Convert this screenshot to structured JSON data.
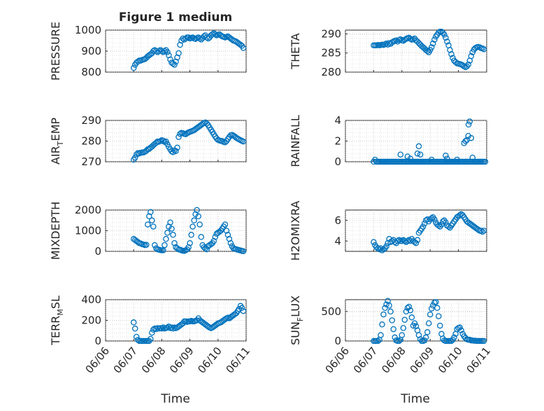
{
  "figure": {
    "title": "Figure 1 medium",
    "xlabel": "Time"
  },
  "theme": {
    "marker_color": "#0072bd"
  },
  "xaxis": {
    "ticks": [
      0,
      1,
      2,
      3,
      4,
      5
    ],
    "tick_labels": [
      "06/06",
      "06/07",
      "06/08",
      "06/09",
      "06/10",
      "06/11"
    ]
  },
  "chart_data": [
    {
      "type": "scatter",
      "ylabel": "PRESSURE",
      "ylim": [
        800,
        1000
      ],
      "yticks": [
        800,
        900,
        1000
      ],
      "grid": true,
      "x": [
        1.0,
        1.05,
        1.1,
        1.15,
        1.2,
        1.25,
        1.3,
        1.35,
        1.4,
        1.45,
        1.5,
        1.55,
        1.6,
        1.65,
        1.7,
        1.75,
        1.8,
        1.85,
        1.9,
        1.95,
        2.0,
        2.05,
        2.1,
        2.15,
        2.2,
        2.25,
        2.3,
        2.35,
        2.4,
        2.45,
        2.5,
        2.55,
        2.6,
        2.65,
        2.7,
        2.75,
        2.8,
        2.85,
        2.9,
        2.95,
        3.0,
        3.05,
        3.1,
        3.15,
        3.2,
        3.25,
        3.3,
        3.35,
        3.4,
        3.45,
        3.5,
        3.55,
        3.6,
        3.65,
        3.7,
        3.75,
        3.8,
        3.85,
        3.9,
        3.95,
        4.0,
        4.05,
        4.1,
        4.15,
        4.2,
        4.25,
        4.3,
        4.35,
        4.4,
        4.45,
        4.5,
        4.55,
        4.6,
        4.65,
        4.7,
        4.75,
        4.8,
        4.85,
        4.9
      ],
      "y": [
        820,
        835,
        845,
        850,
        855,
        855,
        858,
        860,
        862,
        868,
        875,
        880,
        885,
        890,
        900,
        905,
        900,
        895,
        900,
        905,
        900,
        895,
        900,
        905,
        895,
        880,
        860,
        845,
        840,
        835,
        850,
        870,
        890,
        930,
        950,
        960,
        955,
        960,
        965,
        965,
        960,
        962,
        965,
        960,
        958,
        962,
        965,
        960,
        955,
        962,
        970,
        975,
        965,
        960,
        965,
        975,
        980,
        985,
        980,
        975,
        978,
        980,
        975,
        970,
        968,
        965,
        968,
        970,
        965,
        960,
        955,
        950,
        948,
        945,
        940,
        935,
        930,
        925,
        915
      ]
    },
    {
      "type": "scatter",
      "ylabel": "THETA",
      "ylim": [
        280,
        291
      ],
      "yticks": [
        280,
        285,
        290
      ],
      "grid": true,
      "x": [
        1.0,
        1.05,
        1.1,
        1.15,
        1.2,
        1.25,
        1.3,
        1.35,
        1.4,
        1.45,
        1.5,
        1.55,
        1.6,
        1.65,
        1.7,
        1.75,
        1.8,
        1.85,
        1.9,
        1.95,
        2.0,
        2.05,
        2.1,
        2.15,
        2.2,
        2.25,
        2.3,
        2.35,
        2.4,
        2.45,
        2.5,
        2.55,
        2.6,
        2.65,
        2.7,
        2.75,
        2.8,
        2.85,
        2.9,
        2.95,
        3.0,
        3.05,
        3.1,
        3.15,
        3.2,
        3.25,
        3.3,
        3.35,
        3.4,
        3.45,
        3.5,
        3.55,
        3.6,
        3.65,
        3.7,
        3.75,
        3.8,
        3.85,
        3.9,
        3.95,
        4.0,
        4.05,
        4.1,
        4.15,
        4.2,
        4.25,
        4.3,
        4.35,
        4.4,
        4.45,
        4.5,
        4.55,
        4.6,
        4.65,
        4.7,
        4.75,
        4.8,
        4.85,
        4.9
      ],
      "y": [
        287.0,
        287.0,
        287.0,
        287.1,
        287.0,
        287.1,
        287.2,
        287.1,
        287.3,
        287.5,
        287.2,
        287.6,
        287.4,
        287.8,
        288.0,
        288.2,
        288.3,
        288.0,
        288.4,
        288.6,
        288.3,
        288.2,
        288.5,
        288.7,
        288.9,
        289.0,
        288.7,
        288.5,
        288.6,
        288.8,
        288.3,
        288.0,
        287.6,
        287.2,
        286.8,
        286.5,
        286.2,
        285.8,
        285.5,
        285.2,
        285.8,
        286.5,
        287.5,
        288.5,
        289.3,
        289.8,
        290.3,
        290.6,
        290.6,
        290.3,
        289.8,
        289.0,
        288.0,
        287.0,
        285.8,
        284.7,
        283.7,
        283.0,
        282.6,
        282.3,
        282.2,
        282.1,
        282.0,
        281.8,
        281.5,
        281.3,
        281.5,
        282.0,
        283.0,
        284.2,
        285.2,
        285.9,
        286.3,
        286.5,
        286.6,
        286.5,
        286.3,
        286.2,
        286.0
      ]
    },
    {
      "type": "scatter",
      "ylabel": "AIR_TEMP",
      "ylim": [
        270,
        290
      ],
      "yticks": [
        270,
        280,
        290
      ],
      "grid": true,
      "x": [
        1.0,
        1.05,
        1.1,
        1.15,
        1.2,
        1.25,
        1.3,
        1.35,
        1.4,
        1.45,
        1.5,
        1.55,
        1.6,
        1.65,
        1.7,
        1.75,
        1.8,
        1.85,
        1.9,
        1.95,
        2.0,
        2.05,
        2.1,
        2.15,
        2.2,
        2.25,
        2.3,
        2.35,
        2.4,
        2.45,
        2.5,
        2.55,
        2.6,
        2.65,
        2.7,
        2.75,
        2.8,
        2.85,
        2.9,
        2.95,
        3.0,
        3.05,
        3.1,
        3.15,
        3.2,
        3.25,
        3.3,
        3.35,
        3.4,
        3.45,
        3.5,
        3.55,
        3.6,
        3.65,
        3.7,
        3.75,
        3.8,
        3.85,
        3.9,
        3.95,
        4.0,
        4.05,
        4.1,
        4.15,
        4.2,
        4.25,
        4.3,
        4.35,
        4.4,
        4.45,
        4.5,
        4.55,
        4.6,
        4.65,
        4.7,
        4.75,
        4.8,
        4.85,
        4.9
      ],
      "y": [
        271.0,
        272.0,
        273.5,
        274.2,
        274.0,
        274.3,
        274.5,
        274.5,
        274.8,
        275.3,
        276.0,
        276.2,
        276.8,
        277.3,
        278.0,
        278.6,
        279.2,
        279.8,
        279.7,
        280.0,
        280.4,
        280.2,
        279.6,
        279.8,
        278.5,
        277.2,
        276.0,
        275.0,
        274.6,
        275.5,
        275.2,
        276.8,
        282.0,
        283.5,
        284.0,
        283.8,
        283.5,
        283.3,
        283.8,
        284.2,
        284.5,
        284.7,
        285.0,
        285.3,
        285.8,
        286.3,
        286.8,
        287.3,
        287.8,
        288.3,
        288.7,
        289.0,
        288.5,
        287.7,
        286.6,
        285.5,
        284.4,
        283.3,
        282.2,
        281.3,
        280.6,
        280.3,
        280.1,
        280.0,
        279.6,
        279.4,
        280.0,
        281.0,
        282.0,
        282.8,
        283.0,
        282.6,
        282.2,
        281.6,
        281.2,
        280.8,
        280.4,
        280.1,
        279.8
      ]
    },
    {
      "type": "scatter",
      "ylabel": "RAINFALL",
      "ylim": [
        0,
        4
      ],
      "yticks": [
        0,
        2,
        4
      ],
      "grid": true,
      "x": [
        1.0,
        1.05,
        1.1,
        1.15,
        1.2,
        1.25,
        1.3,
        1.35,
        1.4,
        1.45,
        1.5,
        1.55,
        1.6,
        1.65,
        1.7,
        1.75,
        1.8,
        1.85,
        1.9,
        1.95,
        2.0,
        2.05,
        2.1,
        2.15,
        2.2,
        2.25,
        2.3,
        2.35,
        2.4,
        2.45,
        2.5,
        2.55,
        2.6,
        2.65,
        2.7,
        2.75,
        2.8,
        2.85,
        2.9,
        2.95,
        3.0,
        3.05,
        3.1,
        3.15,
        3.2,
        3.25,
        3.3,
        3.35,
        3.4,
        3.45,
        3.5,
        3.55,
        3.6,
        3.65,
        3.7,
        3.75,
        3.8,
        3.85,
        3.9,
        3.95,
        4.0,
        4.05,
        4.1,
        4.15,
        4.2,
        4.25,
        4.3,
        4.35,
        4.4,
        4.45,
        4.5,
        4.55,
        4.6,
        4.65,
        4.7,
        4.75,
        4.8,
        4.85,
        4.9,
        4.95,
        1.95,
        2.2,
        2.3,
        2.55,
        2.6,
        2.65,
        3.05,
        3.55,
        3.6,
        3.95,
        4.2,
        4.25,
        4.3,
        4.35,
        4.36,
        4.4,
        4.45,
        4.5
      ],
      "y": [
        0,
        0.2,
        0,
        0,
        0,
        0,
        0,
        0,
        0,
        0,
        0,
        0,
        0,
        0,
        0,
        0,
        0,
        0,
        0,
        0,
        0,
        0,
        0,
        0,
        0,
        0,
        0,
        0,
        0,
        0,
        0,
        0,
        0,
        0,
        0,
        0,
        0,
        0,
        0,
        0,
        0,
        0,
        0,
        0,
        0,
        0,
        0,
        0,
        0,
        0,
        0,
        0,
        0,
        0,
        0,
        0,
        0,
        0,
        0,
        0,
        0,
        0,
        0,
        0,
        0,
        0,
        0,
        0,
        0,
        0,
        0,
        0,
        0,
        0,
        0,
        0,
        0,
        0,
        0,
        0,
        0.7,
        0.5,
        0.3,
        0.8,
        1.5,
        0.7,
        0.2,
        0.6,
        0.3,
        0.2,
        1.8,
        2.0,
        2.1,
        2.5,
        3.6,
        3.9,
        2.3,
        0.4
      ]
    },
    {
      "type": "scatter",
      "ylabel": "MIXDEPTH",
      "ylim": [
        0,
        2000
      ],
      "yticks": [
        0,
        1000,
        2000
      ],
      "grid": true,
      "x": [
        1.0,
        1.05,
        1.1,
        1.15,
        1.2,
        1.25,
        1.3,
        1.35,
        1.4,
        1.45,
        1.5,
        1.55,
        1.6,
        1.65,
        1.7,
        1.75,
        1.8,
        1.85,
        1.9,
        1.95,
        2.0,
        2.05,
        2.1,
        2.15,
        2.2,
        2.25,
        2.3,
        2.35,
        2.4,
        2.45,
        2.5,
        2.55,
        2.6,
        2.65,
        2.7,
        2.75,
        2.8,
        2.85,
        2.9,
        2.95,
        3.0,
        3.05,
        3.1,
        3.15,
        3.2,
        3.25,
        3.3,
        3.35,
        3.4,
        3.45,
        3.5,
        3.55,
        3.6,
        3.65,
        3.7,
        3.75,
        3.8,
        3.85,
        3.9,
        3.95,
        4.0,
        4.05,
        4.1,
        4.15,
        4.2,
        4.25,
        4.3,
        4.35,
        4.4,
        4.45,
        4.5,
        4.55,
        4.6,
        4.65,
        4.7,
        4.75,
        4.8,
        4.85,
        4.9
      ],
      "y": [
        600,
        550,
        500,
        450,
        400,
        380,
        350,
        330,
        300,
        320,
        1300,
        1700,
        1900,
        1500,
        1200,
        300,
        150,
        100,
        80,
        60,
        50,
        50,
        300,
        600,
        900,
        1200,
        1400,
        1100,
        800,
        400,
        200,
        150,
        100,
        80,
        50,
        30,
        20,
        50,
        100,
        200,
        400,
        800,
        1200,
        1500,
        1800,
        2000,
        1700,
        1300,
        700,
        300,
        200,
        150,
        100,
        250,
        300,
        350,
        400,
        500,
        700,
        850,
        900,
        950,
        1000,
        1100,
        1200,
        1300,
        1000,
        800,
        600,
        400,
        250,
        150,
        120,
        100,
        80,
        60,
        40,
        20,
        10
      ]
    },
    {
      "type": "scatter",
      "ylabel": "H2OMIXRA",
      "ylim": [
        3,
        7
      ],
      "yticks": [
        4,
        6
      ],
      "grid": true,
      "x": [
        1.0,
        1.05,
        1.1,
        1.15,
        1.2,
        1.25,
        1.3,
        1.35,
        1.4,
        1.45,
        1.5,
        1.55,
        1.6,
        1.65,
        1.7,
        1.75,
        1.8,
        1.85,
        1.9,
        1.95,
        2.0,
        2.05,
        2.1,
        2.15,
        2.2,
        2.25,
        2.3,
        2.35,
        2.4,
        2.45,
        2.5,
        2.55,
        2.6,
        2.65,
        2.7,
        2.75,
        2.8,
        2.85,
        2.9,
        2.95,
        3.0,
        3.05,
        3.1,
        3.15,
        3.2,
        3.25,
        3.3,
        3.35,
        3.4,
        3.45,
        3.5,
        3.55,
        3.6,
        3.65,
        3.7,
        3.75,
        3.8,
        3.85,
        3.9,
        3.95,
        4.0,
        4.05,
        4.1,
        4.15,
        4.2,
        4.25,
        4.3,
        4.35,
        4.4,
        4.45,
        4.5,
        4.55,
        4.6,
        4.65,
        4.7,
        4.75,
        4.8,
        4.85,
        4.9
      ],
      "y": [
        3.9,
        3.6,
        3.4,
        3.3,
        3.2,
        3.3,
        3.1,
        3.2,
        3.3,
        3.5,
        3.8,
        4.2,
        3.9,
        4.0,
        4.1,
        3.9,
        3.8,
        4.0,
        4.1,
        4.0,
        4.0,
        4.1,
        4.0,
        3.9,
        4.0,
        4.1,
        4.0,
        4.2,
        4.0,
        3.9,
        3.8,
        4.1,
        4.8,
        5.0,
        5.2,
        5.4,
        5.7,
        6.0,
        6.1,
        5.9,
        6.1,
        6.2,
        6.3,
        6.1,
        5.8,
        5.6,
        5.5,
        5.4,
        5.6,
        5.9,
        6.0,
        5.8,
        5.5,
        5.4,
        5.3,
        5.5,
        5.7,
        5.9,
        6.1,
        6.3,
        6.4,
        6.5,
        6.6,
        6.5,
        6.3,
        6.1,
        5.9,
        5.8,
        5.7,
        5.6,
        5.5,
        5.4,
        5.3,
        5.2,
        5.1,
        5.0,
        5.0,
        4.9,
        5.0
      ]
    },
    {
      "type": "scatter",
      "ylabel": "TERR_MSL",
      "ylim": [
        0,
        400
      ],
      "yticks": [
        0,
        200,
        400
      ],
      "grid": true,
      "x": [
        1.0,
        1.05,
        1.1,
        1.15,
        1.2,
        1.25,
        1.3,
        1.35,
        1.4,
        1.45,
        1.5,
        1.55,
        1.6,
        1.65,
        1.7,
        1.75,
        1.8,
        1.85,
        1.9,
        1.95,
        2.0,
        2.05,
        2.1,
        2.15,
        2.2,
        2.25,
        2.3,
        2.35,
        2.4,
        2.45,
        2.5,
        2.55,
        2.6,
        2.65,
        2.7,
        2.75,
        2.8,
        2.85,
        2.9,
        2.95,
        3.0,
        3.05,
        3.1,
        3.15,
        3.2,
        3.25,
        3.3,
        3.35,
        3.4,
        3.45,
        3.5,
        3.55,
        3.6,
        3.65,
        3.7,
        3.75,
        3.8,
        3.85,
        3.9,
        3.95,
        4.0,
        4.05,
        4.1,
        4.15,
        4.2,
        4.25,
        4.3,
        4.35,
        4.4,
        4.45,
        4.5,
        4.55,
        4.6,
        4.65,
        4.7,
        4.75,
        4.8,
        4.85,
        4.9
      ],
      "y": [
        180,
        120,
        40,
        10,
        0,
        0,
        0,
        0,
        0,
        0,
        0,
        0,
        20,
        80,
        110,
        120,
        115,
        125,
        120,
        125,
        120,
        130,
        120,
        125,
        130,
        140,
        125,
        130,
        120,
        130,
        125,
        130,
        140,
        150,
        160,
        170,
        190,
        190,
        185,
        190,
        190,
        195,
        190,
        190,
        195,
        200,
        220,
        200,
        190,
        180,
        170,
        160,
        150,
        140,
        130,
        125,
        130,
        140,
        150,
        160,
        170,
        175,
        180,
        190,
        200,
        210,
        220,
        225,
        220,
        230,
        240,
        250,
        260,
        270,
        290,
        310,
        340,
        320,
        290
      ]
    },
    {
      "type": "scatter",
      "ylabel": "SUN_FLUX",
      "ylim": [
        0,
        700
      ],
      "yticks": [
        0,
        500
      ],
      "grid": true,
      "x": [
        1.0,
        1.05,
        1.1,
        1.15,
        1.2,
        1.25,
        1.3,
        1.35,
        1.4,
        1.45,
        1.5,
        1.55,
        1.6,
        1.65,
        1.7,
        1.75,
        1.8,
        1.85,
        1.9,
        1.95,
        2.0,
        2.05,
        2.1,
        2.15,
        2.2,
        2.25,
        2.3,
        2.35,
        2.4,
        2.45,
        2.5,
        2.55,
        2.6,
        2.65,
        2.7,
        2.75,
        2.8,
        2.85,
        2.9,
        2.95,
        3.0,
        3.05,
        3.1,
        3.15,
        3.2,
        3.25,
        3.3,
        3.35,
        3.4,
        3.45,
        3.5,
        3.55,
        3.6,
        3.65,
        3.7,
        3.75,
        3.8,
        3.85,
        3.9,
        3.95,
        4.0,
        4.05,
        4.1,
        4.15,
        4.2,
        4.25,
        4.3,
        4.35,
        4.4,
        4.45,
        4.5,
        4.55,
        4.6,
        4.65,
        4.7,
        4.75,
        4.8,
        4.85,
        4.9
      ],
      "y": [
        0,
        0,
        0,
        0,
        20,
        100,
        280,
        450,
        560,
        620,
        680,
        600,
        500,
        350,
        200,
        60,
        10,
        0,
        0,
        20,
        100,
        220,
        360,
        500,
        560,
        580,
        520,
        400,
        260,
        300,
        250,
        180,
        100,
        30,
        0,
        0,
        10,
        60,
        150,
        300,
        450,
        550,
        600,
        650,
        660,
        560,
        420,
        260,
        120,
        40,
        10,
        0,
        0,
        0,
        0,
        0,
        20,
        60,
        120,
        200,
        220,
        230,
        180,
        120,
        80,
        50,
        30,
        20,
        20,
        10,
        10,
        5,
        5,
        0,
        0,
        0,
        0,
        0,
        0
      ]
    }
  ]
}
